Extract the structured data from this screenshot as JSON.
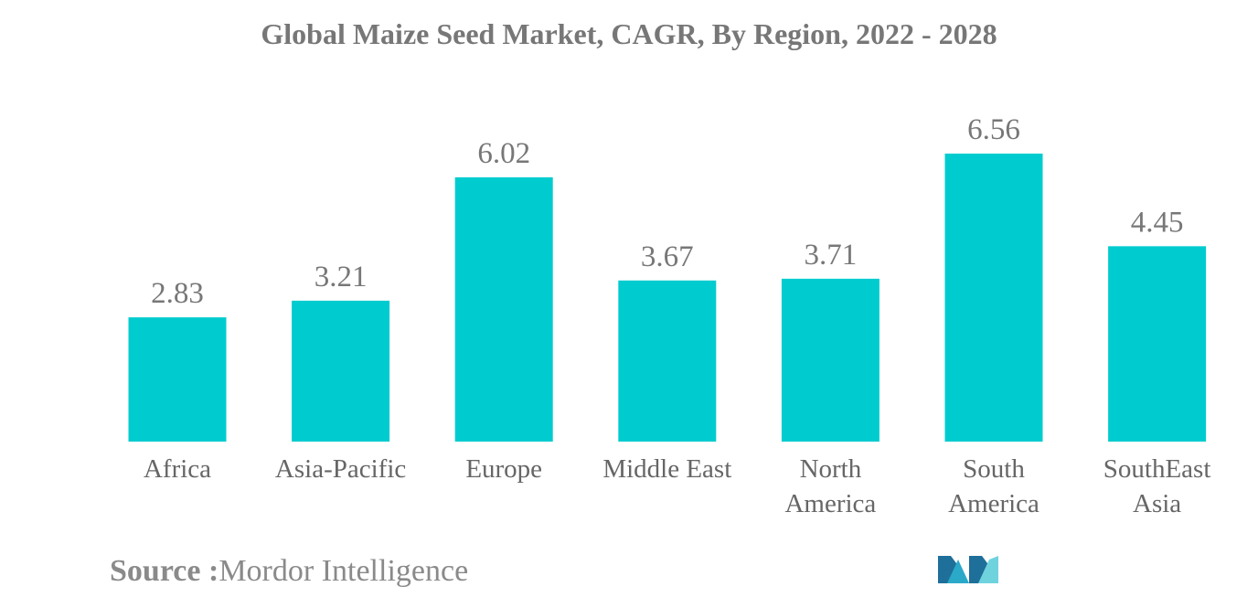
{
  "chart_data": {
    "type": "bar",
    "title": "Global Maize Seed Market, CAGR, By Region, 2022 - 2028",
    "categories": [
      [
        "Africa"
      ],
      [
        "Asia-Pacific"
      ],
      [
        "Europe"
      ],
      [
        "Middle East"
      ],
      [
        "North",
        "America"
      ],
      [
        "South",
        "America"
      ],
      [
        "SouthEast",
        "Asia"
      ]
    ],
    "values": [
      2.83,
      3.21,
      6.02,
      3.67,
      3.71,
      6.56,
      4.45
    ],
    "value_labels": [
      "2.83",
      "3.21",
      "6.02",
      "3.67",
      "3.71",
      "6.56",
      "4.45"
    ],
    "xlabel": "",
    "ylabel": "",
    "ylim": [
      0,
      6.56
    ],
    "grid": false,
    "legend": "none",
    "bar_color": "#00cccf"
  },
  "source": {
    "label": "Source :",
    "text": "Mordor Intelligence"
  },
  "logo": {
    "icon": "mordor-intelligence-logo-icon",
    "colors": [
      "#1e6f99",
      "#2aa9c9",
      "#6fd3de"
    ]
  }
}
